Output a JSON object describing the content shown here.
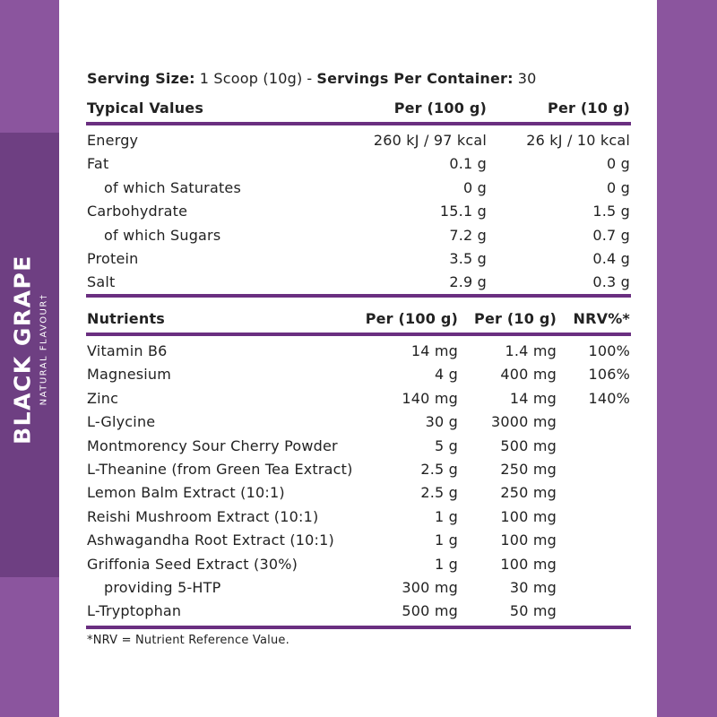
{
  "side": {
    "title": "BLACK GRAPE",
    "subtitle": "NATURAL FLAVOUR†"
  },
  "serving": {
    "size_label": "Serving Size:",
    "size_value": "1 Scoop (10g)",
    "separator": "-",
    "servings_label": "Servings Per Container:",
    "servings_value": "30"
  },
  "typical_table": {
    "header": [
      "Typical Values",
      "Per (100 g)",
      "Per (10 g)"
    ],
    "rows": [
      {
        "cells": [
          "Energy",
          "260 kJ / 97 kcal",
          "26 kJ / 10 kcal"
        ]
      },
      {
        "cells": [
          "Fat",
          "0.1 g",
          "0 g"
        ]
      },
      {
        "cells": [
          "of which Saturates",
          "0 g",
          "0 g"
        ],
        "indent": true
      },
      {
        "cells": [
          "Carbohydrate",
          "15.1 g",
          "1.5 g"
        ]
      },
      {
        "cells": [
          "of which Sugars",
          "7.2 g",
          "0.7 g"
        ],
        "indent": true
      },
      {
        "cells": [
          "Protein",
          "3.5 g",
          "0.4 g"
        ]
      },
      {
        "cells": [
          "Salt",
          "2.9 g",
          "0.3 g"
        ]
      }
    ]
  },
  "nutrients_table": {
    "header": [
      "Nutrients",
      "Per (100 g)",
      "Per (10 g)",
      "NRV%*"
    ],
    "rows": [
      {
        "cells": [
          "Vitamin B6",
          "14 mg",
          "1.4 mg",
          "100%"
        ]
      },
      {
        "cells": [
          "Magnesium",
          "4 g",
          "400 mg",
          "106%"
        ]
      },
      {
        "cells": [
          "Zinc",
          "140 mg",
          "14 mg",
          "140%"
        ]
      },
      {
        "cells": [
          "L-Glycine",
          "30 g",
          "3000 mg"
        ]
      },
      {
        "cells": [
          "Montmorency Sour Cherry Powder",
          "5 g",
          "500 mg"
        ]
      },
      {
        "cells": [
          "L-Theanine (from Green Tea Extract)",
          "2.5 g",
          "250 mg"
        ]
      },
      {
        "cells": [
          "Lemon Balm Extract (10:1)",
          "2.5 g",
          "250 mg"
        ]
      },
      {
        "cells": [
          "Reishi Mushroom Extract (10:1)",
          "1 g",
          "100 mg"
        ]
      },
      {
        "cells": [
          "Ashwagandha Root Extract (10:1)",
          "1 g",
          "100 mg"
        ]
      },
      {
        "cells": [
          "Griffonia Seed Extract (30%)",
          "1 g",
          "100 mg"
        ]
      },
      {
        "cells": [
          "providing 5-HTP",
          "300 mg",
          "30 mg"
        ],
        "indent": true
      },
      {
        "cells": [
          "L-Tryptophan",
          "500 mg",
          "50 mg"
        ]
      }
    ]
  },
  "footnote": "*NRV = Nutrient Reference Value."
}
